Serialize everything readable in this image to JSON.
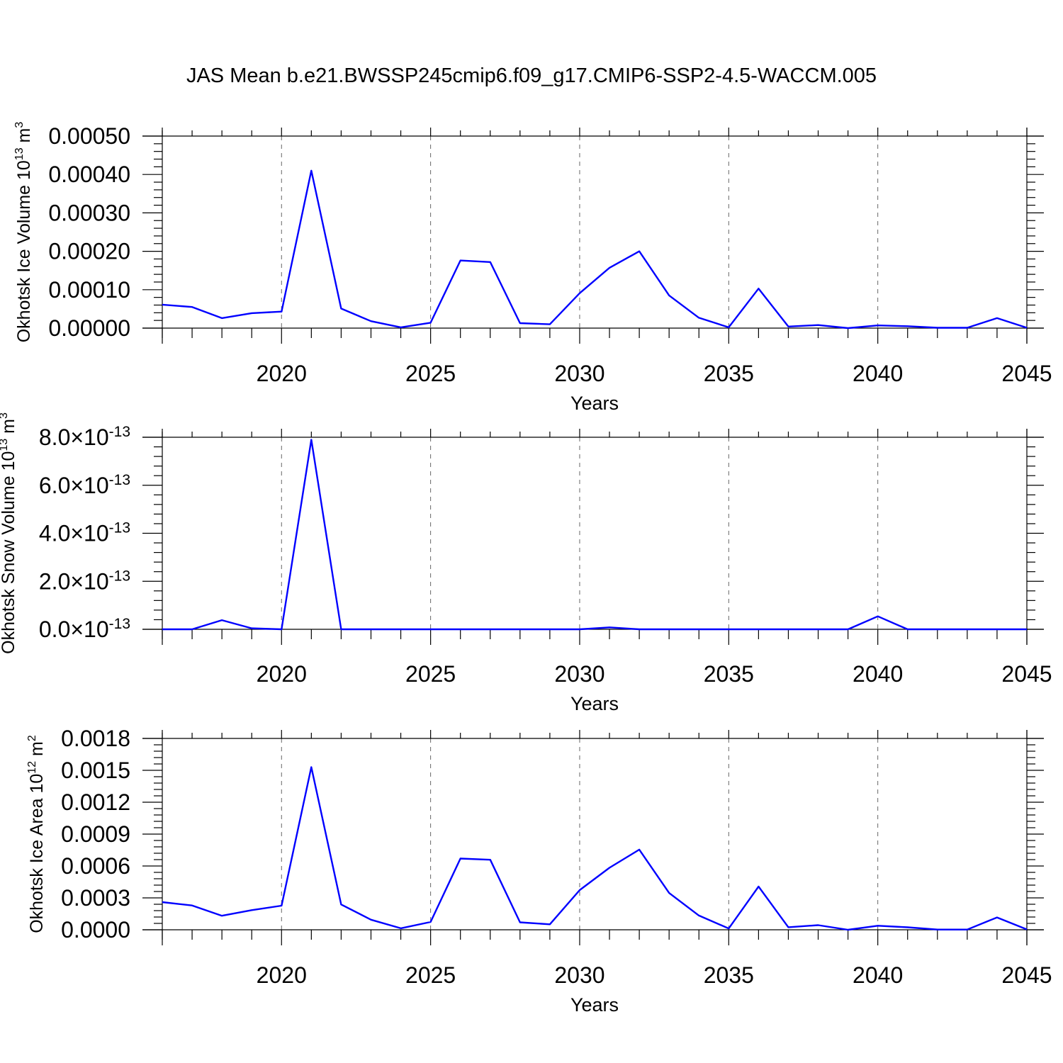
{
  "title": "JAS Mean b.e21.BWSSP245cmip6.f09_g17.CMIP6-SSP2-4.5-WACCM.005",
  "colors": {
    "line": "#0000ff",
    "axis": "#000000",
    "background": "#ffffff"
  },
  "chart_data": [
    {
      "type": "line",
      "ylabel": {
        "text": "Okhotsk Ice Volume 10",
        "sup": "13",
        "unit": "m",
        "unit_sup": "3"
      },
      "xlabel": "Years",
      "xlim": [
        2016,
        2045
      ],
      "ylim": [
        0,
        0.0005
      ],
      "grid": "vertical dashed at major x ticks",
      "x_ticks": [
        2020,
        2025,
        2030,
        2035,
        2040,
        2045
      ],
      "x_tick_labels": [
        "2020",
        "2025",
        "2030",
        "2035",
        "2040",
        "2045"
      ],
      "y_ticks": [
        0,
        0.0001,
        0.0002,
        0.0003,
        0.0004,
        0.0005
      ],
      "y_tick_labels": [
        {
          "base": "0.00000"
        },
        {
          "base": "0.00010"
        },
        {
          "base": "0.00020"
        },
        {
          "base": "0.00030"
        },
        {
          "base": "0.00040"
        },
        {
          "base": "0.00050"
        }
      ],
      "x": [
        2016,
        2017,
        2018,
        2019,
        2020,
        2021,
        2022,
        2023,
        2024,
        2025,
        2026,
        2027,
        2028,
        2029,
        2030,
        2031,
        2032,
        2033,
        2034,
        2035,
        2036,
        2037,
        2038,
        2039,
        2040,
        2041,
        2042,
        2043,
        2044,
        2045
      ],
      "values": [
        6.1e-05,
        5.5e-05,
        2.6e-05,
        3.9e-05,
        4.3e-05,
        0.00041,
        5.1e-05,
        1.8e-05,
        2e-06,
        1.4e-05,
        0.000176,
        0.000172,
        1.3e-05,
        1e-05,
        9.1e-05,
        0.000157,
        0.0002,
        8.5e-05,
        2.7e-05,
        2e-06,
        0.000103,
        4e-06,
        8e-06,
        0.0,
        7e-06,
        5e-06,
        1e-06,
        1e-06,
        2.6e-05,
        1e-06
      ]
    },
    {
      "type": "line",
      "ylabel": {
        "text": "Okhotsk Snow Volume 10",
        "sup": "13",
        "unit": "m",
        "unit_sup": "3"
      },
      "xlabel": "Years",
      "xlim": [
        2016,
        2045
      ],
      "ylim": [
        0,
        8e-13
      ],
      "grid": "vertical dashed at major x ticks",
      "x_ticks": [
        2020,
        2025,
        2030,
        2035,
        2040,
        2045
      ],
      "x_tick_labels": [
        "2020",
        "2025",
        "2030",
        "2035",
        "2040",
        "2045"
      ],
      "y_ticks": [
        0,
        2e-13,
        4e-13,
        6e-13,
        8e-13
      ],
      "y_tick_labels": [
        {
          "base": "0.0×10",
          "sup": "-13"
        },
        {
          "base": "2.0×10",
          "sup": "-13"
        },
        {
          "base": "4.0×10",
          "sup": "-13"
        },
        {
          "base": "6.0×10",
          "sup": "-13"
        },
        {
          "base": "8.0×10",
          "sup": "-13"
        }
      ],
      "x": [
        2016,
        2017,
        2018,
        2019,
        2020,
        2021,
        2022,
        2023,
        2024,
        2025,
        2026,
        2027,
        2028,
        2029,
        2030,
        2031,
        2032,
        2033,
        2034,
        2035,
        2036,
        2037,
        2038,
        2039,
        2040,
        2041,
        2042,
        2043,
        2044,
        2045
      ],
      "values": [
        0,
        0,
        3.8e-14,
        4e-15,
        0,
        7.9e-13,
        0,
        0,
        0,
        0,
        0,
        0,
        0,
        0,
        0,
        8e-15,
        0,
        0,
        0,
        0,
        0,
        0,
        0,
        0,
        5.4e-14,
        0,
        0,
        0,
        0,
        0
      ]
    },
    {
      "type": "line",
      "ylabel": {
        "text": "Okhotsk Ice Area 10",
        "sup": "12",
        "unit": "m",
        "unit_sup": "2"
      },
      "xlabel": "Years",
      "xlim": [
        2016,
        2045
      ],
      "ylim": [
        0,
        0.0018
      ],
      "grid": "vertical dashed at major x ticks",
      "x_ticks": [
        2020,
        2025,
        2030,
        2035,
        2040,
        2045
      ],
      "x_tick_labels": [
        "2020",
        "2025",
        "2030",
        "2035",
        "2040",
        "2045"
      ],
      "y_ticks": [
        0,
        0.0003,
        0.0006,
        0.0009,
        0.0012,
        0.0015,
        0.0018
      ],
      "y_tick_labels": [
        {
          "base": "0.0000"
        },
        {
          "base": "0.0003"
        },
        {
          "base": "0.0006"
        },
        {
          "base": "0.0009"
        },
        {
          "base": "0.0012"
        },
        {
          "base": "0.0015"
        },
        {
          "base": "0.0018"
        }
      ],
      "x": [
        2016,
        2017,
        2018,
        2019,
        2020,
        2021,
        2022,
        2023,
        2024,
        2025,
        2026,
        2027,
        2028,
        2029,
        2030,
        2031,
        2032,
        2033,
        2034,
        2035,
        2036,
        2037,
        2038,
        2039,
        2040,
        2041,
        2042,
        2043,
        2044,
        2045
      ],
      "values": [
        0.00026,
        0.000229,
        0.000132,
        0.000185,
        0.000227,
        0.00153,
        0.000238,
        9.5e-05,
        1.4e-05,
        7.3e-05,
        0.00067,
        0.000659,
        7e-05,
        5.1e-05,
        0.000373,
        0.000583,
        0.000754,
        0.000346,
        0.000134,
        1.2e-05,
        0.000407,
        2.4e-05,
        4.3e-05,
        0.0,
        3.8e-05,
        2.3e-05,
        2e-06,
        2e-06,
        0.000116,
        3e-06
      ]
    }
  ]
}
